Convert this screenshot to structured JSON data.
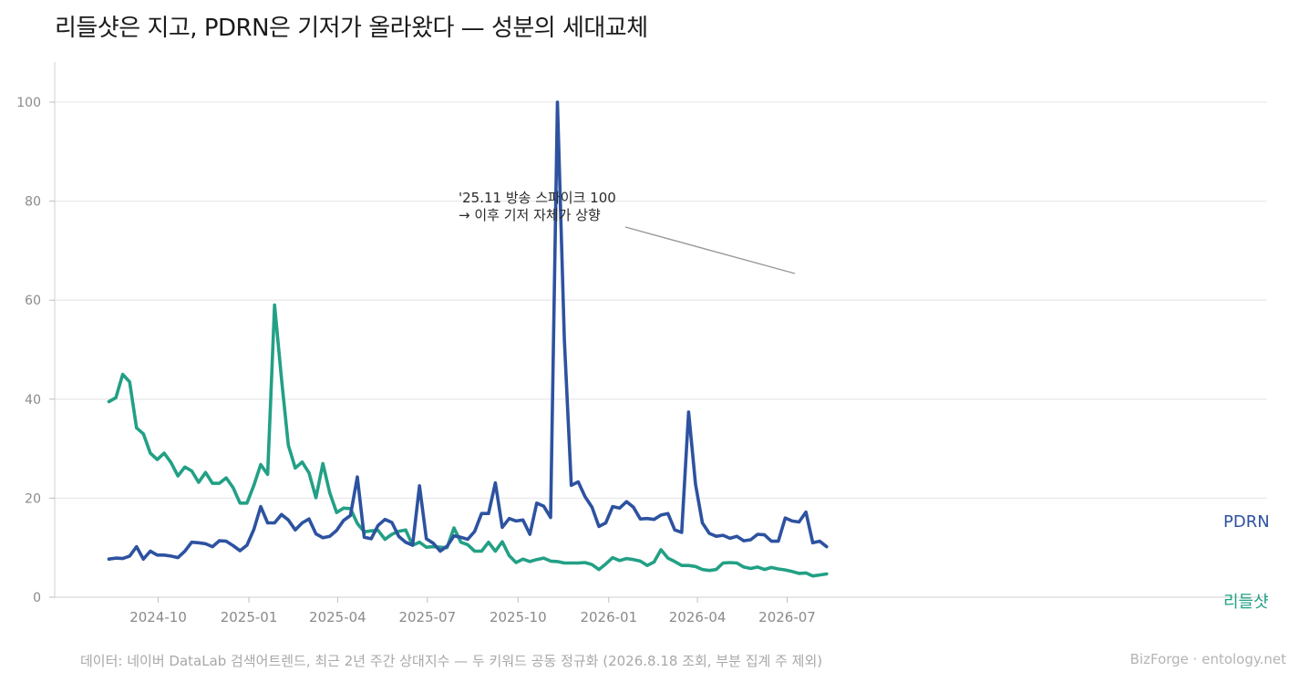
{
  "title": "리들샷은 지고, PDRN은 기저가 올라왔다 — 성분의 세대교체",
  "footer": {
    "source": "데이터: 네이버 DataLab 검색어트렌드, 최근 2년 주간 상대지수 — 두 키워드 공동 정규화 (2026.8.18 조회, 부분 집계 주 제외)",
    "brand": "BizForge · entology.net"
  },
  "chart_data": {
    "type": "line",
    "x_start": "2024-08-12",
    "x_step_days": 7,
    "ylim": [
      0,
      108
    ],
    "yticks": [
      0,
      20,
      40,
      60,
      80,
      100
    ],
    "xticks": [
      {
        "date": "2024-10-01",
        "label": "2024-10"
      },
      {
        "date": "2025-01-01",
        "label": "2025-01"
      },
      {
        "date": "2025-04-01",
        "label": "2025-04"
      },
      {
        "date": "2025-07-01",
        "label": "2025-07"
      },
      {
        "date": "2025-10-01",
        "label": "2025-10"
      },
      {
        "date": "2026-01-01",
        "label": "2026-01"
      },
      {
        "date": "2026-04-01",
        "label": "2026-04"
      },
      {
        "date": "2026-07-01",
        "label": "2026-07"
      }
    ],
    "series": [
      {
        "name": "리들샷",
        "color": "#22a085",
        "values": [
          39.5,
          40.3,
          45.0,
          43.5,
          34.2,
          33.0,
          29.1,
          27.8,
          29.1,
          27.2,
          24.5,
          26.3,
          25.5,
          23.2,
          25.2,
          23.0,
          23.0,
          24.1,
          22.1,
          19.0,
          19.0,
          22.6,
          26.8,
          24.8,
          59.0,
          44.1,
          30.7,
          26.1,
          27.3,
          25.1,
          20.1,
          27.0,
          21.1,
          17.1,
          18.0,
          17.9,
          14.9,
          13.2,
          13.4,
          13.5,
          11.7,
          12.7,
          13.3,
          13.6,
          10.5,
          11.1,
          10.1,
          10.2,
          10.1,
          10.0,
          14.0,
          11.1,
          10.6,
          9.3,
          9.3,
          11.1,
          9.3,
          11.2,
          8.4,
          7.0,
          7.7,
          7.2,
          7.6,
          7.9,
          7.3,
          7.2,
          6.9,
          6.9,
          6.9,
          7.0,
          6.6,
          5.6,
          6.7,
          8.0,
          7.4,
          7.8,
          7.6,
          7.3,
          6.4,
          7.1,
          9.6,
          7.9,
          7.2,
          6.4,
          6.4,
          6.2,
          5.6,
          5.4,
          5.6,
          6.9,
          7.0,
          6.9,
          6.1,
          5.8,
          6.1,
          5.6,
          6.0,
          5.7,
          5.5,
          5.2,
          4.8,
          4.9,
          4.3,
          4.5,
          4.7
        ]
      },
      {
        "name": "PDRN",
        "color": "#2d52a0",
        "values": [
          7.7,
          7.9,
          7.8,
          8.3,
          10.2,
          7.7,
          9.3,
          8.5,
          8.5,
          8.3,
          8.0,
          9.3,
          11.1,
          11.0,
          10.8,
          10.2,
          11.4,
          11.3,
          10.4,
          9.4,
          10.5,
          13.7,
          18.3,
          15.0,
          15.0,
          16.7,
          15.6,
          13.6,
          15.0,
          15.8,
          12.8,
          12.0,
          12.3,
          13.5,
          15.5,
          16.5,
          24.3,
          12.1,
          11.8,
          14.5,
          15.7,
          15.1,
          12.3,
          11.1,
          10.5,
          22.5,
          11.8,
          10.9,
          9.3,
          10.3,
          12.4,
          12.1,
          11.7,
          13.3,
          16.9,
          16.9,
          23.1,
          14.1,
          15.9,
          15.4,
          15.6,
          12.7,
          19.0,
          18.4,
          16.1,
          100.0,
          52.0,
          22.6,
          23.3,
          20.3,
          18.2,
          14.3,
          15.0,
          18.3,
          18.0,
          19.3,
          18.2,
          15.8,
          15.9,
          15.7,
          16.6,
          16.9,
          13.6,
          13.1,
          37.4,
          22.8,
          15.0,
          12.9,
          12.3,
          12.5,
          11.9,
          12.3,
          11.4,
          11.6,
          12.7,
          12.6,
          11.3,
          11.3,
          16.0,
          15.4,
          15.2,
          17.2,
          11.0,
          11.3,
          10.2
        ]
      }
    ],
    "annotation": {
      "line1": "'25.11 방송 스파이크 100",
      "line2": "→ 이후 기저 자체가 상향"
    }
  }
}
